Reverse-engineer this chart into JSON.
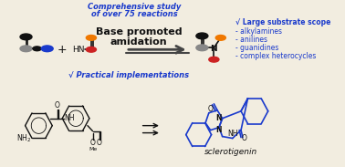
{
  "bg_color": "#f2ede0",
  "top_title_line1": "Comprehensive study",
  "top_title_line2": "of over 75 reactions",
  "center_text_line1": "Base promoted",
  "center_text_line2": "amidation",
  "right_text_0": "√ Large substrate scope",
  "right_text_1": "- alkylamines",
  "right_text_2": "- anilines",
  "right_text_3": "- guanidines",
  "right_text_4": "- complex heterocycles",
  "bottom_left_text": "√ Practical implementations",
  "bottom_product_text": "sclerotigenin",
  "blue": "#1a3acc",
  "black": "#111111",
  "gray": "#888888",
  "dgray": "#444444",
  "orange": "#f07800",
  "red": "#cc2222",
  "figw": 3.78,
  "figh": 1.83,
  "dpi": 100
}
